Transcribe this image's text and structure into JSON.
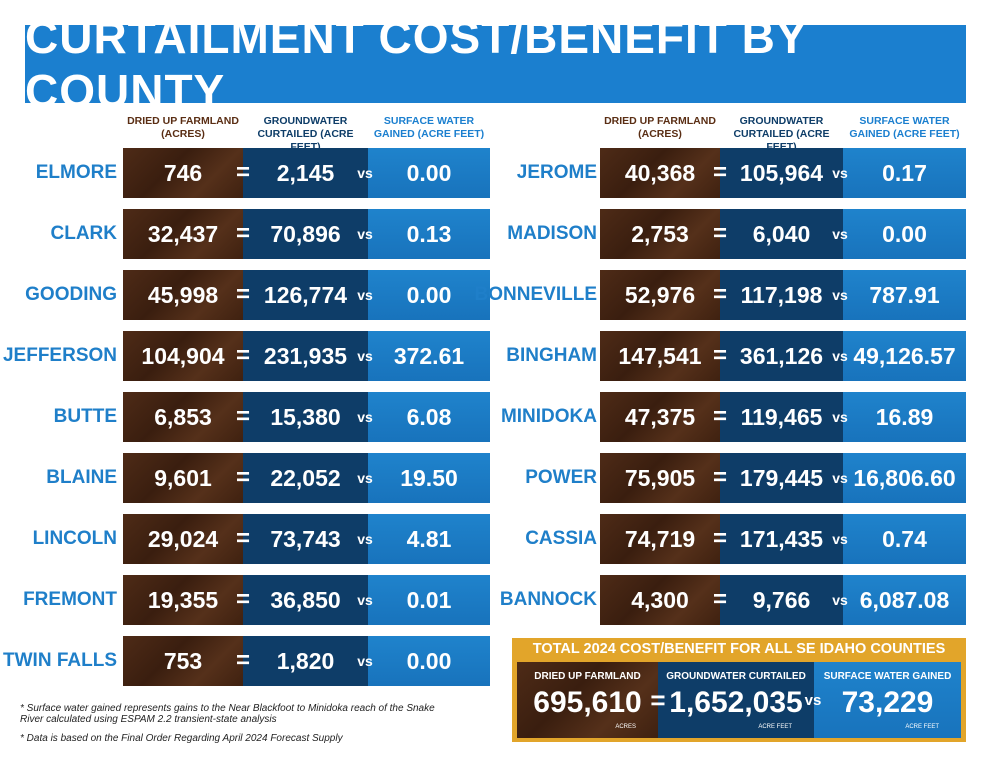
{
  "title": "CURTAILMENT COST/BENEFIT BY COUNTY",
  "column_headers": [
    "DRIED UP FARMLAND (ACRES)",
    "GROUNDWATER CURTAILED (ACRE FEET)",
    "SURFACE WATER GAINED (ACRE FEET)"
  ],
  "equals_sign": "=",
  "versus": "vs",
  "left_table": {
    "rows": [
      [
        "ELMORE",
        "746",
        "2,145",
        "0.00"
      ],
      [
        "CLARK",
        "32,437",
        "70,896",
        "0.13"
      ],
      [
        "GOODING",
        "45,998",
        "126,774",
        "0.00"
      ],
      [
        "JEFFERSON",
        "104,904",
        "231,935",
        "372.61"
      ],
      [
        "BUTTE",
        "6,853",
        "15,380",
        "6.08"
      ],
      [
        "BLAINE",
        "9,601",
        "22,052",
        "19.50"
      ],
      [
        "LINCOLN",
        "29,024",
        "73,743",
        "4.81"
      ],
      [
        "FREMONT",
        "19,355",
        "36,850",
        "0.01"
      ],
      [
        "TWIN FALLS",
        "753",
        "1,820",
        "0.00"
      ]
    ]
  },
  "right_table": {
    "rows": [
      [
        "JEROME",
        "40,368",
        "105,964",
        "0.17"
      ],
      [
        "MADISON",
        "2,753",
        "6,040",
        "0.00"
      ],
      [
        "BONNEVILLE",
        "52,976",
        "117,198",
        "787.91"
      ],
      [
        "BINGHAM",
        "147,541",
        "361,126",
        "49,126.57"
      ],
      [
        "MINIDOKA",
        "47,375",
        "119,465",
        "16.89"
      ],
      [
        "POWER",
        "75,905",
        "179,445",
        "16,806.60"
      ],
      [
        "CASSIA",
        "74,719",
        "171,435",
        "0.74"
      ],
      [
        "BANNOCK",
        "4,300",
        "9,766",
        "6,087.08"
      ]
    ]
  },
  "total": {
    "title": "TOTAL 2024 COST/BENEFIT FOR ALL SE IDAHO COUNTIES",
    "labels": [
      "DRIED UP FARMLAND",
      "GROUNDWATER CURTAILED",
      "SURFACE WATER GAINED"
    ],
    "values": [
      "695,610",
      "1,652,035",
      "73,229"
    ],
    "units": [
      "ACRES",
      "ACRE FEET",
      "ACRE FEET"
    ]
  },
  "footnotes": [
    "* Surface water gained represents gains to the Near Blackfoot to Minidoka reach of the Snake River calculated using ESPAM 2.2 transient-state analysis",
    "* Data is based on the Final Order Regarding April 2024 Forecast Supply"
  ]
}
